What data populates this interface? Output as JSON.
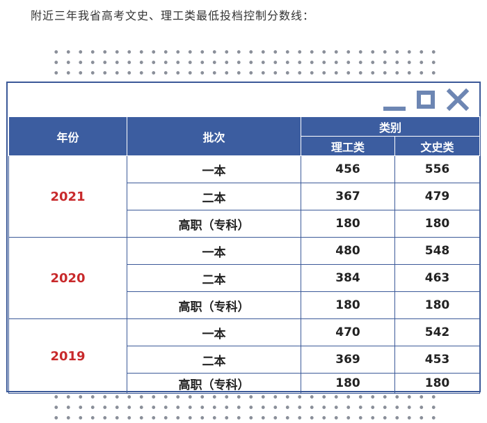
{
  "caption": "附近三年我省高考文史、理工类最低投档控制分数线：",
  "icons": [
    "minimize-icon",
    "maximize-icon",
    "close-icon"
  ],
  "colors": {
    "header_bg": "#3c5da0",
    "border": "#3b5998",
    "year_text": "#c8292b",
    "control_icons": "#6d86b3"
  },
  "table": {
    "headers": {
      "year": "年份",
      "batch": "批次",
      "category": "类别",
      "science": "理工类",
      "arts": "文史类"
    },
    "groups": [
      {
        "year": "2021",
        "rows": [
          {
            "batch": "一本",
            "science": "456",
            "arts": "556"
          },
          {
            "batch": "二本",
            "science": "367",
            "arts": "479"
          },
          {
            "batch": "高职（专科）",
            "science": "180",
            "arts": "180"
          }
        ]
      },
      {
        "year": "2020",
        "rows": [
          {
            "batch": "一本",
            "science": "480",
            "arts": "548"
          },
          {
            "batch": "二本",
            "science": "384",
            "arts": "463"
          },
          {
            "batch": "高职（专科）",
            "science": "180",
            "arts": "180"
          }
        ]
      },
      {
        "year": "2019",
        "rows": [
          {
            "batch": "一本",
            "science": "470",
            "arts": "542"
          },
          {
            "batch": "二本",
            "science": "369",
            "arts": "453"
          },
          {
            "batch": "高职（专科）",
            "science": "180",
            "arts": "180"
          }
        ]
      }
    ]
  }
}
